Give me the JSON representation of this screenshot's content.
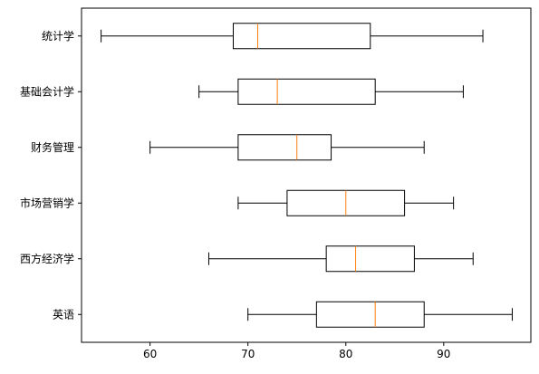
{
  "chart_data": {
    "type": "boxplot",
    "orientation": "horizontal",
    "title": "",
    "xlabel": "",
    "ylabel": "",
    "xlim": [
      53,
      98.9
    ],
    "xticks": [
      60,
      70,
      80,
      90
    ],
    "grid": false,
    "categories": [
      "统计学",
      "基础会计学",
      "财务管理",
      "市场营销学",
      "西方经济学",
      "英语"
    ],
    "boxes": [
      {
        "label": "统计学",
        "whisker_low": 55,
        "q1": 68.5,
        "median": 71,
        "q3": 82.5,
        "whisker_high": 94
      },
      {
        "label": "基础会计学",
        "whisker_low": 65,
        "q1": 69,
        "median": 73,
        "q3": 83,
        "whisker_high": 92
      },
      {
        "label": "财务管理",
        "whisker_low": 60,
        "q1": 69,
        "median": 75,
        "q3": 78.5,
        "whisker_high": 88
      },
      {
        "label": "市场营销学",
        "whisker_low": 69,
        "q1": 74,
        "median": 80,
        "q3": 86,
        "whisker_high": 91
      },
      {
        "label": "西方经济学",
        "whisker_low": 66,
        "q1": 78,
        "median": 81,
        "q3": 87,
        "whisker_high": 93
      },
      {
        "label": "英语",
        "whisker_low": 70,
        "q1": 77,
        "median": 83,
        "q3": 88,
        "whisker_high": 97
      }
    ],
    "colors": {
      "box": "#000000",
      "median": "#ff7f0e"
    }
  }
}
